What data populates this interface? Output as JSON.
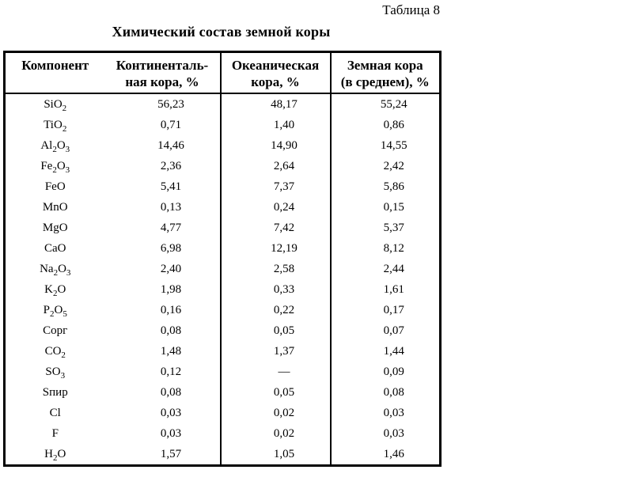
{
  "page": {
    "table_label": "Таблица 8",
    "title": "Химический состав земной коры"
  },
  "table": {
    "headers": [
      {
        "line1": "Компонент",
        "line2": ""
      },
      {
        "line1": "Континенталь-",
        "line2": "ная кора, %"
      },
      {
        "line1": "Океаническая",
        "line2": "кора, %"
      },
      {
        "line1": "Земная кора",
        "line2": "(в среднем), %"
      }
    ],
    "rows": [
      {
        "component": "SiO_2",
        "continental": "56,23",
        "oceanic": "48,17",
        "average": "55,24"
      },
      {
        "component": "TiO_2",
        "continental": "0,71",
        "oceanic": "1,40",
        "average": "0,86"
      },
      {
        "component": "Al_2O_3",
        "continental": "14,46",
        "oceanic": "14,90",
        "average": "14,55"
      },
      {
        "component": "Fe_2O_3",
        "continental": "2,36",
        "oceanic": "2,64",
        "average": "2,42"
      },
      {
        "component": "FeO",
        "continental": "5,41",
        "oceanic": "7,37",
        "average": "5,86"
      },
      {
        "component": "MnO",
        "continental": "0,13",
        "oceanic": "0,24",
        "average": "0,15"
      },
      {
        "component": "MgO",
        "continental": "4,77",
        "oceanic": "7,42",
        "average": "5,37"
      },
      {
        "component": "CaO",
        "continental": "6,98",
        "oceanic": "12,19",
        "average": "8,12"
      },
      {
        "component": "Na_2O_3",
        "continental": "2,40",
        "oceanic": "2,58",
        "average": "2,44"
      },
      {
        "component": "K_2O",
        "continental": "1,98",
        "oceanic": "0,33",
        "average": "1,61"
      },
      {
        "component": "P_2O_5",
        "continental": "0,16",
        "oceanic": "0,22",
        "average": "0,17"
      },
      {
        "component": "Cорг",
        "continental": "0,08",
        "oceanic": "0,05",
        "average": "0,07"
      },
      {
        "component": "CO_2",
        "continental": "1,48",
        "oceanic": "1,37",
        "average": "1,44"
      },
      {
        "component": "SO_3",
        "continental": "0,12",
        "oceanic": "—",
        "average": "0,09"
      },
      {
        "component": "Sпир",
        "continental": "0,08",
        "oceanic": "0,05",
        "average": "0,08"
      },
      {
        "component": "Cl",
        "continental": "0,03",
        "oceanic": "0,02",
        "average": "0,03"
      },
      {
        "component": "F",
        "continental": "0,03",
        "oceanic": "0,02",
        "average": "0,03"
      },
      {
        "component": "H_2O",
        "continental": "1,57",
        "oceanic": "1,05",
        "average": "1,46"
      }
    ],
    "colors": {
      "border": "#000000",
      "text": "#000000",
      "background": "#ffffff"
    }
  }
}
